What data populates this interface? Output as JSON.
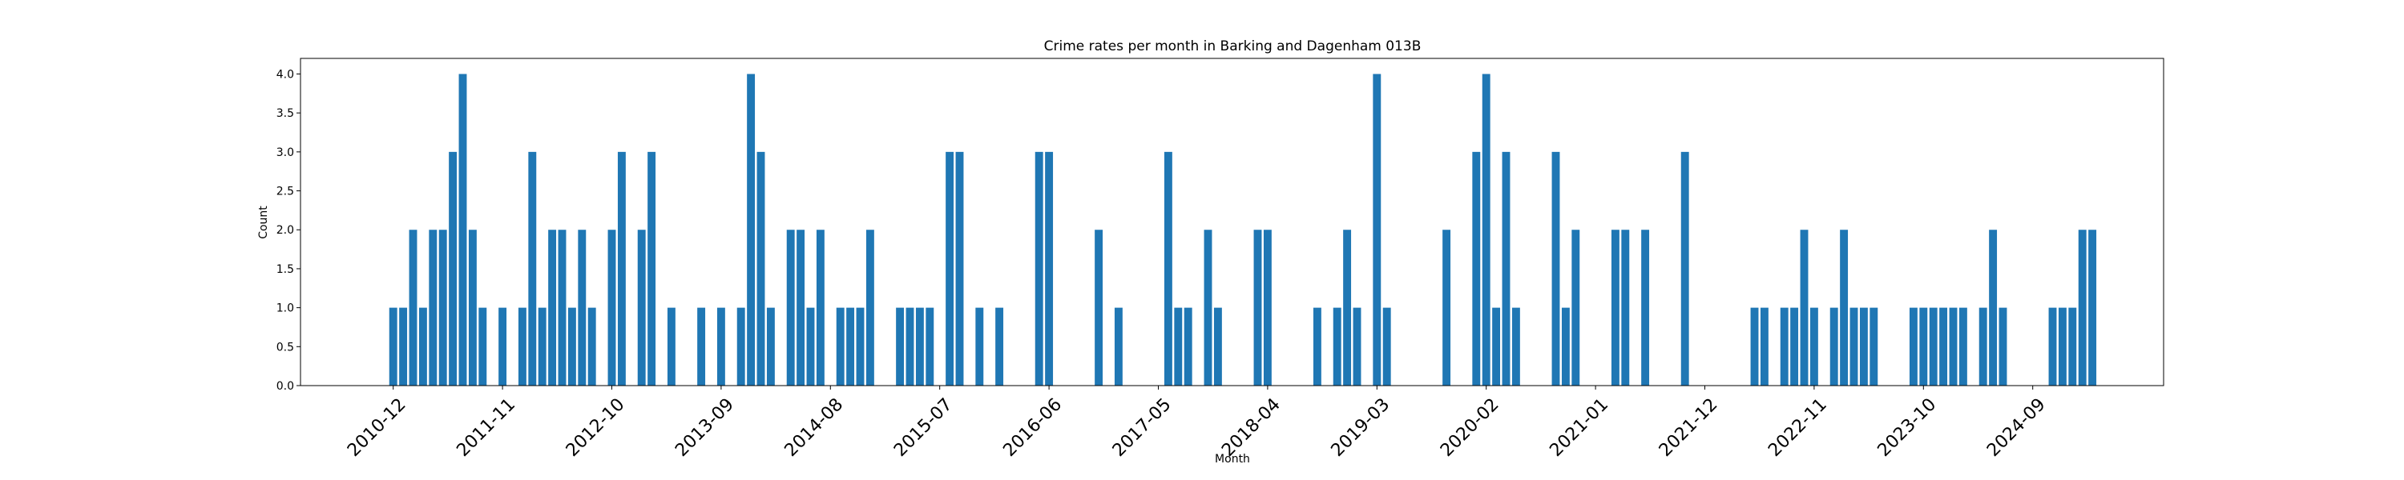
{
  "chart_data": {
    "type": "bar",
    "title": "Crime rates per month in Barking and Dagenham 013B",
    "xlabel": "Month",
    "ylabel": "Count",
    "ylim": [
      0,
      4.2
    ],
    "yticks": [
      "0.0",
      "0.5",
      "1.0",
      "1.5",
      "2.0",
      "2.5",
      "3.0",
      "3.5",
      "4.0"
    ],
    "xtick_labels": [
      "2010-12",
      "2011-11",
      "2012-10",
      "2013-09",
      "2014-08",
      "2015-07",
      "2016-06",
      "2017-05",
      "2018-04",
      "2019-03",
      "2020-02",
      "2021-01",
      "2021-12",
      "2022-11",
      "2023-10",
      "2024-09"
    ],
    "grid": false,
    "color": "#1f77b4",
    "categories": [
      "2010-12",
      "2011-01",
      "2011-02",
      "2011-03",
      "2011-04",
      "2011-05",
      "2011-06",
      "2011-07",
      "2011-08",
      "2011-09",
      "2011-11",
      "2012-01",
      "2012-02",
      "2012-03",
      "2012-04",
      "2012-05",
      "2012-06",
      "2012-07",
      "2012-08",
      "2012-10",
      "2012-11",
      "2013-01",
      "2013-02",
      "2013-04",
      "2013-07",
      "2013-09",
      "2013-11",
      "2013-12",
      "2014-01",
      "2014-02",
      "2014-04",
      "2014-05",
      "2014-06",
      "2014-07",
      "2014-09",
      "2014-10",
      "2014-11",
      "2014-12",
      "2015-03",
      "2015-04",
      "2015-05",
      "2015-06",
      "2015-08",
      "2015-09",
      "2015-11",
      "2016-01",
      "2016-05",
      "2016-06",
      "2016-11",
      "2017-01",
      "2017-06",
      "2017-07",
      "2017-08",
      "2017-10",
      "2017-11",
      "2018-03",
      "2018-04",
      "2018-09",
      "2018-11",
      "2018-12",
      "2019-01",
      "2019-03",
      "2019-04",
      "2019-10",
      "2020-01",
      "2020-02",
      "2020-03",
      "2020-04",
      "2020-05",
      "2020-09",
      "2020-10",
      "2020-11",
      "2021-03",
      "2021-04",
      "2021-06",
      "2021-10",
      "2022-05",
      "2022-06",
      "2022-08",
      "2022-09",
      "2022-10",
      "2022-11",
      "2023-01",
      "2023-02",
      "2023-03",
      "2023-04",
      "2023-05",
      "2023-09",
      "2023-10",
      "2023-11",
      "2023-12",
      "2024-01",
      "2024-02",
      "2024-04",
      "2024-05",
      "2024-06",
      "2024-11",
      "2024-12",
      "2025-01",
      "2025-02",
      "2025-03"
    ],
    "values": [
      1,
      1,
      2,
      1,
      2,
      2,
      3,
      4,
      2,
      1,
      1,
      1,
      3,
      1,
      2,
      2,
      1,
      2,
      1,
      2,
      3,
      2,
      3,
      1,
      1,
      1,
      1,
      4,
      3,
      1,
      2,
      2,
      1,
      2,
      1,
      1,
      1,
      2,
      1,
      1,
      1,
      1,
      3,
      3,
      1,
      1,
      3,
      3,
      2,
      1,
      3,
      1,
      1,
      2,
      1,
      2,
      2,
      1,
      1,
      2,
      1,
      4,
      1,
      2,
      3,
      4,
      1,
      3,
      1,
      3,
      1,
      2,
      2,
      2,
      2,
      3,
      1,
      1,
      1,
      1,
      2,
      1,
      1,
      2,
      1,
      1,
      1,
      1,
      1,
      1,
      1,
      1,
      1,
      1,
      2,
      1,
      1,
      1,
      1,
      2,
      2
    ]
  }
}
